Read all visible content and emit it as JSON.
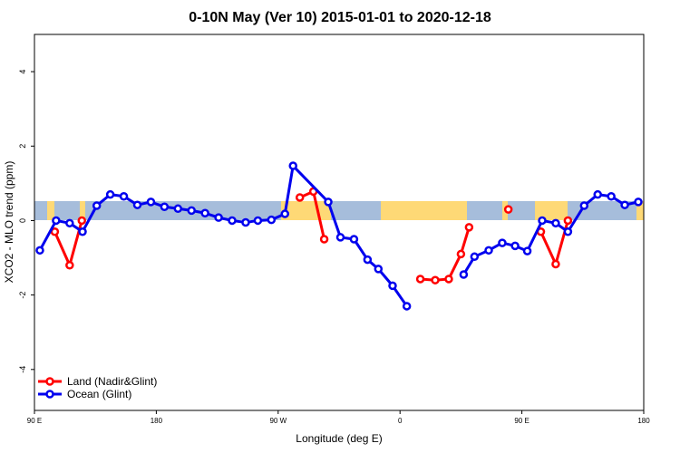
{
  "chart_data": {
    "type": "line",
    "title": "0-10N May (Ver 10)   2015-01-01 to 2020-12-18",
    "x_label": "Longitude (deg E)",
    "y_label": "XCO2 - MLO trend (ppm)",
    "xlim": [
      90,
      540
    ],
    "ylim": [
      -5.1,
      5
    ],
    "xticks": [
      {
        "value": 90,
        "label": "90 E"
      },
      180,
      {
        "value": 270,
        "label": "90 W"
      },
      {
        "value": 360,
        "label": "0"
      },
      {
        "value": 450,
        "label": "90 E"
      },
      {
        "value": 540,
        "label": "180"
      }
    ],
    "yticks": [
      -4,
      -2,
      0,
      2,
      4
    ],
    "legend": "bottom-left",
    "series": [
      {
        "name": "Land (Nadir&Glint)",
        "color": "#ff0000",
        "x": [
          105,
          116,
          125,
          null,
          286,
          296,
          304,
          null,
          375,
          386,
          396,
          405,
          411,
          null,
          440,
          null,
          464,
          475,
          484
        ],
        "values": [
          -0.3,
          -1.2,
          0,
          null,
          0.62,
          0.78,
          -0.5,
          null,
          -1.57,
          -1.6,
          -1.57,
          -0.9,
          -0.18,
          null,
          0.3,
          null,
          -0.3,
          -1.17,
          0
        ]
      },
      {
        "name": "Ocean (Glint)",
        "color": "#0000ee",
        "x": [
          94,
          106,
          116,
          125.5,
          136,
          146,
          156,
          166,
          176,
          186,
          196,
          206,
          216,
          226,
          236,
          246,
          255,
          265,
          275,
          281,
          307,
          316,
          326,
          336,
          344,
          354.5,
          365,
          null,
          407,
          415,
          425.5,
          435.5,
          445,
          454,
          465,
          475,
          484,
          496,
          506,
          516,
          526,
          536
        ],
        "values": [
          -0.8,
          0,
          -0.07,
          -0.3,
          0.4,
          0.7,
          0.65,
          0.42,
          0.5,
          0.37,
          0.32,
          0.27,
          0.2,
          0.08,
          0,
          -0.05,
          0,
          0.02,
          0.18,
          1.47,
          0.5,
          -0.45,
          -0.5,
          -1.05,
          -1.3,
          -1.75,
          -2.3,
          null,
          -1.45,
          -0.97,
          -0.8,
          -0.6,
          -0.68,
          -0.82,
          0,
          -0.07,
          -0.3,
          0.4,
          0.7,
          0.65,
          0.42,
          0.5
        ]
      }
    ]
  }
}
